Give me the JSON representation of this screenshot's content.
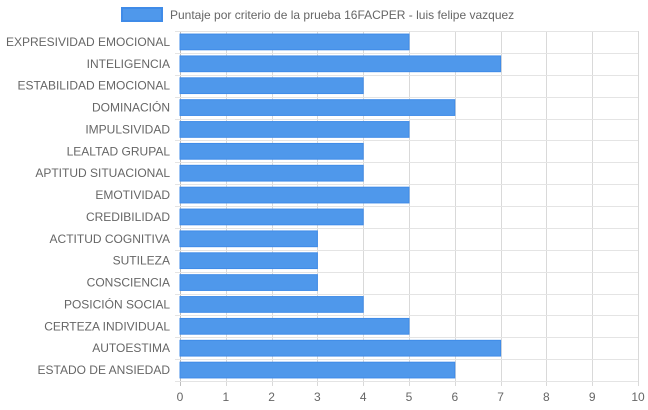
{
  "chart_data": {
    "type": "bar",
    "orientation": "horizontal",
    "categories": [
      "EXPRESIVIDAD EMOCIONAL",
      "INTELIGENCIA",
      "ESTABILIDAD EMOCIONAL",
      "DOMINACIÓN",
      "IMPULSIVIDAD",
      "LEALTAD GRUPAL",
      "APTITUD SITUACIONAL",
      "EMOTIVIDAD",
      "CREDIBILIDAD",
      "ACTITUD COGNITIVA",
      "SUTILEZA",
      "CONSCIENCIA",
      "POSICIÓN SOCIAL",
      "CERTEZA INDIVIDUAL",
      "AUTOESTIMA",
      "ESTADO DE ANSIEDAD"
    ],
    "series": [
      {
        "name": "Puntaje por criterio de la prueba 16FACPER - luis felipe vazquez",
        "values": [
          5,
          7,
          4,
          6,
          5,
          4,
          4,
          5,
          4,
          3,
          3,
          3,
          4,
          5,
          7,
          6
        ],
        "color": "#4f98eb",
        "border_color": "#3f8be8"
      }
    ],
    "xlim": [
      0,
      10
    ],
    "x_ticks": [
      0,
      1,
      2,
      3,
      4,
      5,
      6,
      7,
      8,
      9,
      10
    ],
    "grid": true,
    "legend_position": "top"
  }
}
